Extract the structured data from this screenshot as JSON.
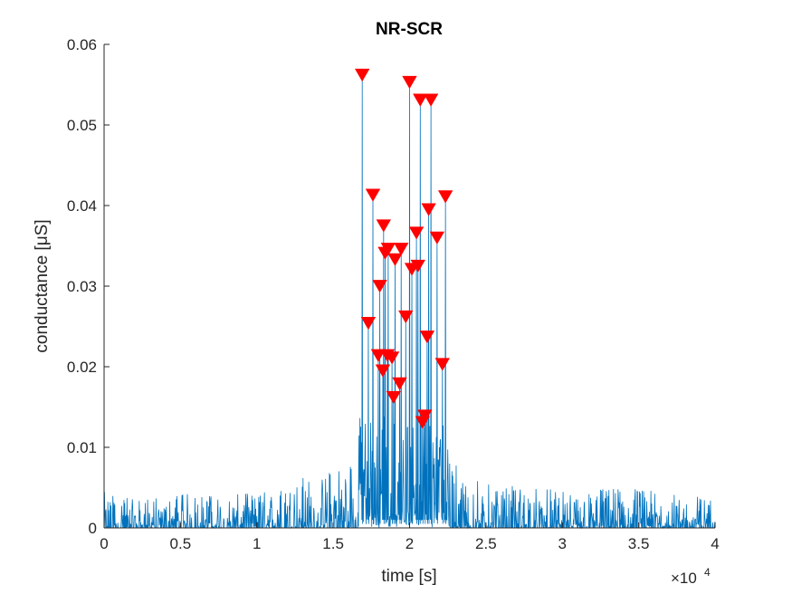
{
  "chart_data": {
    "type": "line",
    "title": "NR-SCR",
    "xlabel": "time [s]",
    "ylabel": "conductance [μS]",
    "xlim": [
      0,
      40000
    ],
    "ylim": [
      0,
      0.06
    ],
    "x_exponent_label": "×10",
    "x_exponent_power": "4",
    "x_ticks": [
      0,
      5000,
      10000,
      15000,
      20000,
      25000,
      30000,
      35000,
      40000
    ],
    "x_tick_labels": [
      "0",
      "0.5",
      "1",
      "1.5",
      "2",
      "2.5",
      "3",
      "3.5",
      "4"
    ],
    "y_ticks": [
      0,
      0.01,
      0.02,
      0.03,
      0.04,
      0.05,
      0.06
    ],
    "y_tick_labels": [
      "0",
      "0.01",
      "0.02",
      "0.03",
      "0.04",
      "0.05",
      "0.06"
    ],
    "grid": false,
    "colors": {
      "signal": "#0072BD",
      "peaks": "#FF0000",
      "axis": "#262626"
    },
    "envelope": [
      [
        0,
        0.0045
      ],
      [
        2000,
        0.0035
      ],
      [
        4000,
        0.004
      ],
      [
        6000,
        0.0045
      ],
      [
        8000,
        0.004
      ],
      [
        10000,
        0.0045
      ],
      [
        12000,
        0.0055
      ],
      [
        13000,
        0.0065
      ],
      [
        14000,
        0.006
      ],
      [
        15000,
        0.008
      ],
      [
        16000,
        0.0095
      ],
      [
        16500,
        0.0085
      ],
      [
        23000,
        0.008
      ],
      [
        24000,
        0.0065
      ],
      [
        25000,
        0.0055
      ],
      [
        26000,
        0.005
      ],
      [
        28000,
        0.0055
      ],
      [
        30000,
        0.0045
      ],
      [
        32000,
        0.0048
      ],
      [
        34000,
        0.0055
      ],
      [
        36000,
        0.0045
      ],
      [
        38000,
        0.0042
      ],
      [
        40000,
        0.004
      ]
    ],
    "peaks": [
      {
        "x": 16900,
        "y": 0.0562
      },
      {
        "x": 17300,
        "y": 0.0254
      },
      {
        "x": 17600,
        "y": 0.0413
      },
      {
        "x": 17950,
        "y": 0.0214
      },
      {
        "x": 18050,
        "y": 0.03
      },
      {
        "x": 18250,
        "y": 0.0195
      },
      {
        "x": 18300,
        "y": 0.0375
      },
      {
        "x": 18400,
        "y": 0.0341
      },
      {
        "x": 18550,
        "y": 0.0214
      },
      {
        "x": 18600,
        "y": 0.0346
      },
      {
        "x": 18850,
        "y": 0.0211
      },
      {
        "x": 18950,
        "y": 0.0162
      },
      {
        "x": 19050,
        "y": 0.0333
      },
      {
        "x": 19350,
        "y": 0.0179
      },
      {
        "x": 19450,
        "y": 0.0346
      },
      {
        "x": 19750,
        "y": 0.0262
      },
      {
        "x": 20000,
        "y": 0.0553
      },
      {
        "x": 20150,
        "y": 0.0321
      },
      {
        "x": 20450,
        "y": 0.0366
      },
      {
        "x": 20550,
        "y": 0.0325
      },
      {
        "x": 20700,
        "y": 0.0531
      },
      {
        "x": 20850,
        "y": 0.0131
      },
      {
        "x": 21000,
        "y": 0.0139
      },
      {
        "x": 21150,
        "y": 0.0237
      },
      {
        "x": 21250,
        "y": 0.0395
      },
      {
        "x": 21400,
        "y": 0.0531
      },
      {
        "x": 21800,
        "y": 0.036
      },
      {
        "x": 22150,
        "y": 0.0203
      },
      {
        "x": 22350,
        "y": 0.0411
      }
    ]
  }
}
